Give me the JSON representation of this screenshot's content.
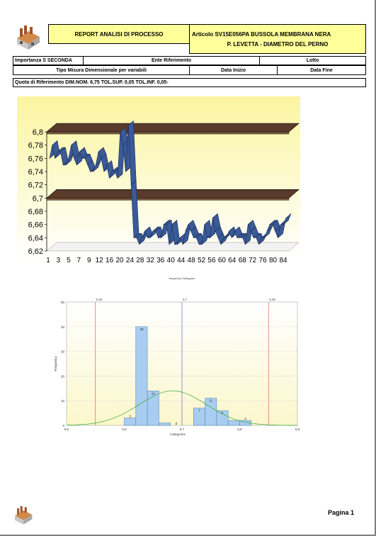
{
  "header": {
    "report_title": "REPORT ANALISI DI PROCESSO",
    "article_line1": "Articolo SV15E056PA BUSSOLA MEMBRANA NERA",
    "article_line2": "P. LEVETTA - DIAMETRO DEL PERNO"
  },
  "info_rows": {
    "importanza": "Importanza S SECONDA",
    "ente_riferimento": "Ente Riferimento",
    "lotto": "Lotto",
    "tipo_misura": "Tipo Misura Dimensionale per variabili",
    "data_inizio": "Data Inizio",
    "data_fine": "Data Fine",
    "quota": "Quota di Riferimento DIM.NOM. 6,75 TOL.SUP. 0,05 TOL.INF. 0,05-"
  },
  "footer": {
    "page_label": "Pagina 1"
  },
  "colors": {
    "header_yellow": "#ffff99",
    "series_blue": "#3a5a99",
    "hist_bar": "#a9cdf0",
    "normal_curve": "#33aa33",
    "limit_line": "#cc6666",
    "nominal_line": "#6666cc"
  },
  "chart_data": [
    {
      "type": "line",
      "title": "",
      "yticks": [
        "6,8",
        "6,78",
        "6,76",
        "6,74",
        "6,72",
        "6,7",
        "6,68",
        "6,66",
        "6,64",
        "6,62"
      ],
      "ylim": [
        6.62,
        6.8
      ],
      "xticks": [
        "1",
        "3",
        "5",
        "7",
        "9",
        "12",
        "16",
        "20",
        "24",
        "28",
        "32",
        "36",
        "40",
        "44",
        "48",
        "52",
        "56",
        "60",
        "64",
        "68",
        "72",
        "76",
        "80",
        "84"
      ],
      "reference_bands": [
        6.8,
        6.7
      ],
      "x": [
        1,
        2,
        3,
        4,
        5,
        6,
        7,
        8,
        9,
        10,
        11,
        12,
        13,
        14,
        15,
        16,
        17,
        18,
        19,
        20,
        21,
        22,
        23,
        24,
        25,
        26,
        27,
        28,
        29,
        30,
        31,
        32,
        33,
        34,
        35,
        36,
        37,
        38,
        39,
        40,
        41,
        42,
        43,
        44,
        45,
        46,
        47,
        48,
        49,
        50,
        51,
        52,
        53,
        54,
        55,
        56,
        57,
        58,
        59,
        60,
        61,
        62,
        63,
        64,
        65,
        66,
        67,
        68,
        69,
        70,
        71,
        72,
        73,
        74,
        75,
        76,
        77,
        78,
        79,
        80,
        81,
        82,
        83,
        84,
        85,
        86,
        87,
        88
      ],
      "values": [
        6.76,
        6.78,
        6.76,
        6.77,
        6.77,
        6.75,
        6.75,
        6.76,
        6.78,
        6.76,
        6.75,
        6.77,
        6.76,
        6.76,
        6.75,
        6.74,
        6.74,
        6.75,
        6.77,
        6.76,
        6.74,
        6.75,
        6.73,
        6.74,
        6.74,
        6.73,
        6.8,
        6.78,
        6.74,
        6.81,
        6.72,
        6.64,
        6.64,
        6.63,
        6.64,
        6.65,
        6.64,
        6.64,
        6.65,
        6.65,
        6.64,
        6.64,
        6.66,
        6.66,
        6.63,
        6.66,
        6.63,
        6.63,
        6.64,
        6.63,
        6.65,
        6.66,
        6.65,
        6.64,
        6.64,
        6.63,
        6.63,
        6.66,
        6.64,
        6.64,
        6.67,
        6.65,
        6.64,
        6.63,
        6.64,
        6.64,
        6.65,
        6.64,
        6.65,
        6.64,
        6.64,
        6.64,
        6.63,
        6.66,
        6.65,
        6.64,
        6.64,
        6.63,
        6.64,
        6.64,
        6.65,
        6.66,
        6.66,
        6.65,
        6.64,
        6.66,
        6.66,
        6.67
      ]
    },
    {
      "type": "bar",
      "title": "frequency Histogram",
      "xlabel": "Categories",
      "ylabel": "Frequency",
      "yticks": [
        0,
        10,
        20,
        30,
        40,
        50
      ],
      "xticks": [
        "6,5",
        "6,6",
        "6,7",
        "6,8",
        "6,9"
      ],
      "ylim": [
        0,
        50
      ],
      "xlim": [
        6.5,
        6.9
      ],
      "lines": [
        {
          "label": "6,55",
          "x": 6.55
        },
        {
          "label": "6,7",
          "x": 6.7
        },
        {
          "label": "6,85",
          "x": 6.85
        }
      ],
      "bins": [
        {
          "x": 6.61,
          "value": 3,
          "label": "3"
        },
        {
          "x": 6.63,
          "value": 40,
          "label": "40"
        },
        {
          "x": 6.65,
          "value": 14,
          "label": "14"
        },
        {
          "x": 6.67,
          "value": 1,
          "label": ""
        },
        {
          "x": 6.69,
          "value": 0,
          "label": "0"
        },
        {
          "x": 6.71,
          "value": 0,
          "label": ""
        },
        {
          "x": 6.73,
          "value": 7,
          "label": "7"
        },
        {
          "x": 6.75,
          "value": 11,
          "label": "11"
        },
        {
          "x": 6.77,
          "value": 6,
          "label": "6"
        },
        {
          "x": 6.79,
          "value": 2,
          "label": ""
        },
        {
          "x": 6.81,
          "value": 2,
          "label": "2"
        }
      ],
      "normal_curve": {
        "mean": 6.684,
        "sd": 0.058,
        "peak": 14
      }
    }
  ]
}
